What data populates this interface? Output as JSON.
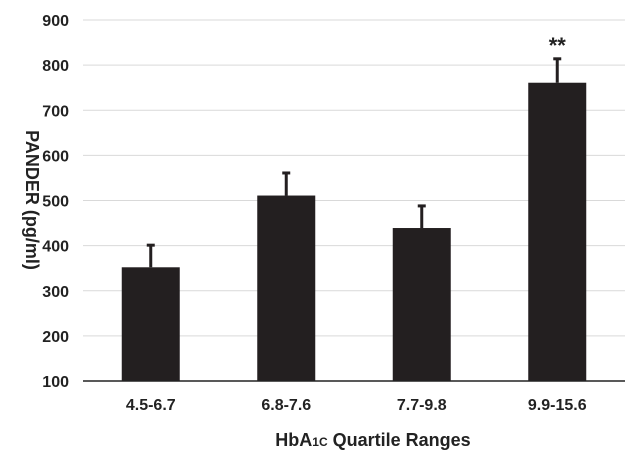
{
  "chart_data": {
    "type": "bar",
    "categories": [
      "4.5-6.7",
      "6.8-7.6",
      "7.7-9.8",
      "9.9-15.6"
    ],
    "values": [
      352,
      511,
      439,
      761
    ],
    "error_upper": [
      401,
      561,
      488,
      814
    ],
    "annotations": [
      "",
      "",
      "",
      "**"
    ],
    "xlabel": "HbA",
    "xlabel_sub": "1C",
    "xlabel_rest": " Quartile Ranges",
    "ylabel": "PANDER (pg/ml)",
    "ylim": [
      100,
      900
    ],
    "yticks": [
      "100",
      "200",
      "300",
      "400",
      "500",
      "600",
      "700",
      "800",
      "900"
    ],
    "grid": true,
    "bar_color": "#231f20",
    "grid_color": "#d9d9d9"
  }
}
